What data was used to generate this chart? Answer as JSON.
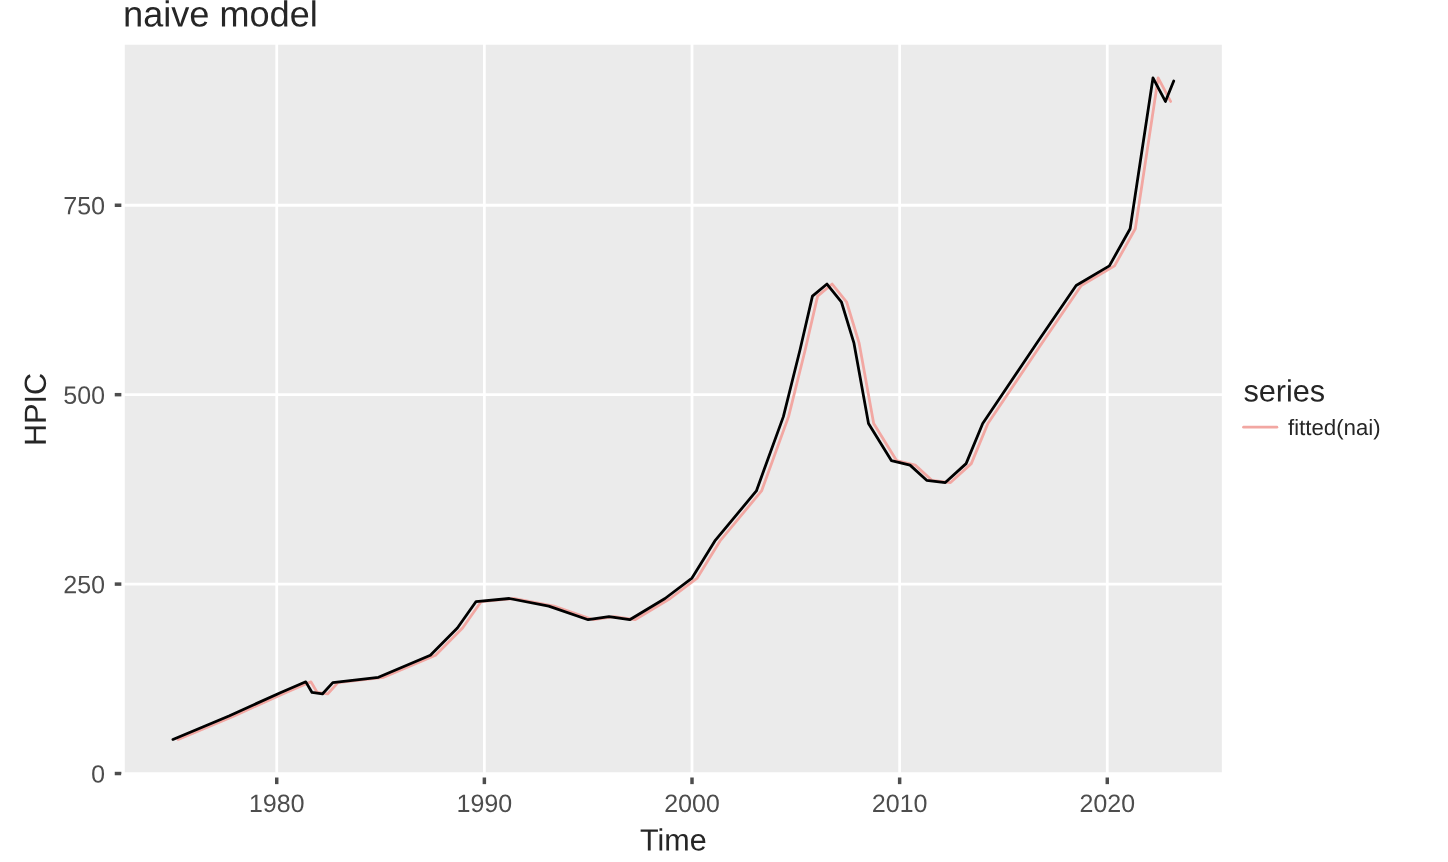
{
  "chart_data": {
    "type": "line",
    "title": "naive model",
    "xlabel": "Time",
    "ylabel": "HPIC",
    "legend_title": "series",
    "xlim": [
      1972.6,
      2025.6
    ],
    "ylim": [
      -3,
      964
    ],
    "xticks": [
      1980,
      1990,
      2000,
      2010,
      2020
    ],
    "yticks": [
      0,
      250,
      500,
      750
    ],
    "grid": true,
    "legend": "right",
    "series": [
      {
        "color": "#000000",
        "x": [
          1975.0,
          1977.7,
          1980.2,
          1981.4,
          1981.7,
          1982.2,
          1982.7,
          1984.9,
          1987.4,
          1988.7,
          1989.6,
          1991.2,
          1993.1,
          1995.0,
          1996.0,
          1997.0,
          1998.7,
          2000.0,
          2001.1,
          2003.1,
          2004.4,
          2005.2,
          2005.8,
          2006.5,
          2007.2,
          2007.8,
          2008.5,
          2009.6,
          2010.5,
          2011.3,
          2012.2,
          2013.2,
          2014.0,
          2016.6,
          2018.5,
          2020.1,
          2021.1,
          2022.2,
          2022.8,
          2023.2
        ],
        "values": [
          45,
          76,
          107,
          121,
          107,
          105,
          120,
          127,
          156,
          192,
          227,
          231,
          221,
          203,
          207,
          203,
          231,
          258,
          307,
          373,
          471,
          559,
          630,
          646,
          622,
          568,
          462,
          413,
          407,
          387,
          384,
          409,
          462,
          568,
          644,
          670,
          719,
          918,
          887,
          914
        ]
      },
      {
        "name": "fitted(nai)",
        "color": "#f2a7a2",
        "x": [
          1975.25,
          1977.95,
          1980.45,
          1981.65,
          1981.95,
          1982.45,
          1982.95,
          1985.15,
          1987.65,
          1988.95,
          1989.85,
          1991.45,
          1993.35,
          1995.25,
          1996.25,
          1997.25,
          1998.95,
          2000.25,
          2001.35,
          2003.35,
          2004.65,
          2005.45,
          2006.05,
          2006.75,
          2007.45,
          2008.05,
          2008.75,
          2009.85,
          2010.75,
          2011.55,
          2012.45,
          2013.45,
          2014.25,
          2016.85,
          2018.75,
          2020.35,
          2021.35,
          2022.45,
          2023.05
        ],
        "values": [
          45,
          76,
          107,
          121,
          107,
          105,
          120,
          127,
          156,
          192,
          227,
          231,
          221,
          203,
          207,
          203,
          231,
          258,
          307,
          373,
          471,
          559,
          630,
          646,
          622,
          568,
          462,
          413,
          407,
          387,
          384,
          409,
          462,
          568,
          644,
          670,
          719,
          918,
          887
        ]
      }
    ]
  }
}
